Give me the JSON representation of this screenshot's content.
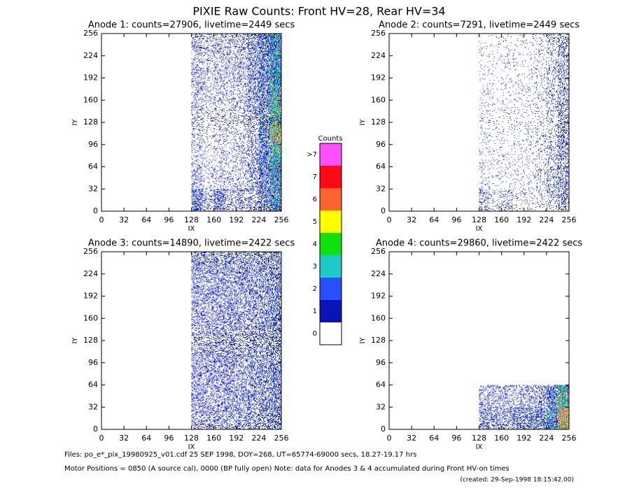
{
  "title": "PIXIE Raw Counts:  Front HV=28, Rear HV=34",
  "footer": [
    "Files: po_e*_pix_19980925_v01.cdf    25 SEP 1998, DOY=268, UT=65774-69000 secs, 18.27-19.17 hrs",
    "Motor Positions = 0850 (A source cal), 0000 (BP fully open)    Note: data for Anodes 3 & 4 accumulated during Front HV-on times",
    "(created: 29-Sep-1998 18:15:42.00)"
  ],
  "colorbar": {
    "title": "Counts",
    "ticks": [
      0,
      1,
      2,
      3,
      4,
      5,
      6,
      7,
      {
        "value": 8,
        "label": ">7"
      }
    ],
    "colors": [
      "#ffffff",
      "#0a14b4",
      "#2850ff",
      "#20c8c8",
      "#10e010",
      "#ffff00",
      "#ff6430",
      "#ff0a14",
      "#ff50ff"
    ]
  },
  "chart_data": [
    {
      "type": "heatmap",
      "title": "Anode 1: counts=27906, livetime=2449 secs",
      "x_label": "IX",
      "y_label": "IY",
      "xlim": [
        0,
        256
      ],
      "ylim": [
        0,
        256
      ],
      "xticks": [
        0,
        32,
        64,
        96,
        128,
        160,
        192,
        224,
        256
      ],
      "yticks": [
        0,
        32,
        64,
        96,
        128,
        160,
        192,
        224,
        256
      ],
      "xbins": [
        0,
        16,
        32,
        48,
        64,
        80,
        96,
        112,
        128,
        144,
        160,
        176,
        192,
        208,
        224,
        240,
        256
      ],
      "ybins": [
        0,
        32,
        64,
        96,
        128,
        160,
        192,
        224,
        256
      ],
      "z": [
        [
          0,
          0,
          0,
          0,
          0,
          0,
          0,
          0,
          0.8,
          0.3,
          0.6,
          0.3,
          0.3,
          0.4,
          0.8,
          1.5
        ],
        [
          0,
          0,
          0,
          0,
          0,
          0,
          0,
          0,
          0.3,
          0.15,
          0.2,
          0.2,
          0.2,
          0.4,
          0.8,
          2
        ],
        [
          0,
          0,
          0,
          0,
          0,
          0,
          0,
          0,
          0.2,
          0.1,
          0.15,
          0.15,
          0.2,
          0.4,
          1,
          2.5
        ],
        [
          0,
          0,
          0,
          0,
          0,
          0,
          0,
          0,
          0.2,
          0.1,
          0.15,
          0.15,
          0.2,
          0.4,
          1,
          4
        ],
        [
          0,
          0,
          0,
          0,
          0,
          0,
          0,
          0,
          0.25,
          0.15,
          0.2,
          0.2,
          0.25,
          0.45,
          0.9,
          3
        ],
        [
          0,
          0,
          0,
          0,
          0,
          0,
          0,
          0,
          0.3,
          0.2,
          0.25,
          0.25,
          0.3,
          0.5,
          0.9,
          2.5
        ],
        [
          0,
          0,
          0,
          0,
          0,
          0,
          0,
          0,
          0.3,
          0.2,
          0.25,
          0.25,
          0.3,
          0.5,
          0.9,
          2
        ],
        [
          0,
          0,
          0,
          0,
          0,
          0,
          0,
          0,
          0.35,
          0.25,
          0.3,
          0.3,
          0.3,
          0.5,
          1,
          2
        ]
      ]
    },
    {
      "type": "heatmap",
      "title": "Anode 2: counts=7291, livetime=2449 secs",
      "x_label": "IX",
      "y_label": "IY",
      "xlim": [
        0,
        256
      ],
      "ylim": [
        0,
        256
      ],
      "xticks": [
        0,
        32,
        64,
        96,
        128,
        160,
        192,
        224,
        256
      ],
      "yticks": [
        0,
        32,
        64,
        96,
        128,
        160,
        192,
        224,
        256
      ],
      "xbins": [
        0,
        16,
        32,
        48,
        64,
        80,
        96,
        112,
        128,
        144,
        160,
        176,
        192,
        208,
        224,
        240,
        256
      ],
      "ybins": [
        0,
        32,
        64,
        96,
        128,
        160,
        192,
        224,
        256
      ],
      "z": [
        [
          0,
          0,
          0,
          0,
          0,
          0,
          0,
          0,
          0.3,
          0.15,
          0.2,
          0.1,
          0.1,
          0.12,
          0.25,
          0.5
        ],
        [
          0,
          0,
          0,
          0,
          0,
          0,
          0,
          0,
          0.1,
          0.06,
          0.07,
          0.07,
          0.08,
          0.12,
          0.25,
          0.45
        ],
        [
          0,
          0,
          0,
          0,
          0,
          0,
          0,
          0,
          0.08,
          0.05,
          0.06,
          0.06,
          0.08,
          0.12,
          0.22,
          0.4
        ],
        [
          0,
          0,
          0,
          0,
          0,
          0,
          0,
          0,
          0.08,
          0.05,
          0.06,
          0.06,
          0.08,
          0.12,
          0.22,
          0.45
        ],
        [
          0,
          0,
          0,
          0,
          0,
          0,
          0,
          0,
          0.07,
          0.05,
          0.06,
          0.06,
          0.07,
          0.1,
          0.2,
          0.4
        ],
        [
          0,
          0,
          0,
          0,
          0,
          0,
          0,
          0,
          0.07,
          0.05,
          0.05,
          0.06,
          0.07,
          0.1,
          0.2,
          0.35
        ],
        [
          0,
          0,
          0,
          0,
          0,
          0,
          0,
          0,
          0.06,
          0.05,
          0.05,
          0.05,
          0.06,
          0.1,
          0.18,
          0.35
        ],
        [
          0,
          0,
          0,
          0,
          0,
          0,
          0,
          0,
          0.06,
          0.05,
          0.05,
          0.05,
          0.06,
          0.1,
          0.2,
          0.4
        ]
      ]
    },
    {
      "type": "heatmap",
      "title": "Anode 3: counts=14890, livetime=2422 secs",
      "x_label": "IX",
      "y_label": "IY",
      "xlim": [
        0,
        256
      ],
      "ylim": [
        0,
        256
      ],
      "xticks": [
        0,
        32,
        64,
        96,
        128,
        160,
        192,
        224,
        256
      ],
      "yticks": [
        0,
        32,
        64,
        96,
        128,
        160,
        192,
        224,
        256
      ],
      "xbins": [
        0,
        16,
        32,
        48,
        64,
        80,
        96,
        112,
        128,
        144,
        160,
        176,
        192,
        208,
        224,
        240,
        256
      ],
      "ybins": [
        0,
        32,
        64,
        96,
        128,
        160,
        192,
        224,
        256
      ],
      "z": [
        [
          0,
          0,
          0,
          0,
          0,
          0,
          0,
          0,
          0.4,
          0.4,
          0.4,
          0.4,
          0.45,
          0.5,
          0.55,
          0.7
        ],
        [
          0,
          0,
          0,
          0,
          0,
          0,
          0,
          0,
          0.45,
          0.4,
          0.45,
          0.45,
          0.45,
          0.5,
          0.55,
          0.7
        ],
        [
          0,
          0,
          0,
          0,
          0,
          0,
          0,
          0,
          0.45,
          0.4,
          0.45,
          0.45,
          0.45,
          0.5,
          0.55,
          0.7
        ],
        [
          0,
          0,
          0,
          0,
          0,
          0,
          0,
          0,
          0.45,
          0.4,
          0.45,
          0.45,
          0.45,
          0.5,
          0.55,
          0.7
        ],
        [
          0,
          0,
          0,
          0,
          0,
          0,
          0,
          0,
          0.45,
          0.4,
          0.45,
          0.45,
          0.45,
          0.5,
          0.55,
          0.7
        ],
        [
          0,
          0,
          0,
          0,
          0,
          0,
          0,
          0,
          0.45,
          0.4,
          0.45,
          0.45,
          0.45,
          0.5,
          0.55,
          0.7
        ],
        [
          0,
          0,
          0,
          0,
          0,
          0,
          0,
          0,
          0.45,
          0.4,
          0.45,
          0.45,
          0.45,
          0.5,
          0.55,
          0.7
        ],
        [
          0,
          0,
          0,
          0,
          0,
          0,
          0,
          0,
          0.5,
          0.45,
          0.5,
          0.5,
          0.5,
          0.5,
          0.55,
          0.7
        ]
      ]
    },
    {
      "type": "heatmap",
      "title": "Anode 4: counts=29860, livetime=2422 secs",
      "x_label": "IX",
      "y_label": "IY",
      "xlim": [
        0,
        256
      ],
      "ylim": [
        0,
        256
      ],
      "xticks": [
        0,
        32,
        64,
        96,
        128,
        160,
        192,
        224,
        256
      ],
      "yticks": [
        0,
        32,
        64,
        96,
        128,
        160,
        192,
        224,
        256
      ],
      "xbins": [
        0,
        16,
        32,
        48,
        64,
        80,
        96,
        112,
        128,
        144,
        160,
        176,
        192,
        208,
        224,
        240,
        256
      ],
      "ybins": [
        0,
        32,
        64,
        96,
        128,
        160,
        192,
        224,
        256
      ],
      "z": [
        [
          0,
          0,
          0,
          0,
          0,
          0,
          0,
          0,
          0.5,
          0.45,
          0.5,
          0.55,
          0.6,
          0.8,
          1.5,
          5
        ],
        [
          0,
          0,
          0,
          0,
          0,
          0,
          0,
          0,
          0.3,
          0.3,
          0.3,
          0.35,
          0.35,
          0.45,
          0.9,
          3
        ],
        [
          0,
          0,
          0,
          0,
          0,
          0,
          0,
          0,
          0,
          0,
          0,
          0,
          0,
          0,
          0,
          0
        ],
        [
          0,
          0,
          0,
          0,
          0,
          0,
          0,
          0,
          0,
          0,
          0,
          0,
          0,
          0,
          0,
          0
        ],
        [
          0,
          0,
          0,
          0,
          0,
          0,
          0,
          0,
          0,
          0,
          0,
          0,
          0,
          0,
          0,
          0
        ],
        [
          0,
          0,
          0,
          0,
          0,
          0,
          0,
          0,
          0,
          0,
          0,
          0,
          0,
          0,
          0,
          0
        ],
        [
          0,
          0,
          0,
          0,
          0,
          0,
          0,
          0,
          0,
          0,
          0,
          0,
          0,
          0,
          0,
          0
        ],
        [
          0,
          0,
          0,
          0,
          0,
          0,
          0,
          0,
          0,
          0,
          0,
          0,
          0,
          0,
          0,
          0
        ]
      ]
    }
  ]
}
